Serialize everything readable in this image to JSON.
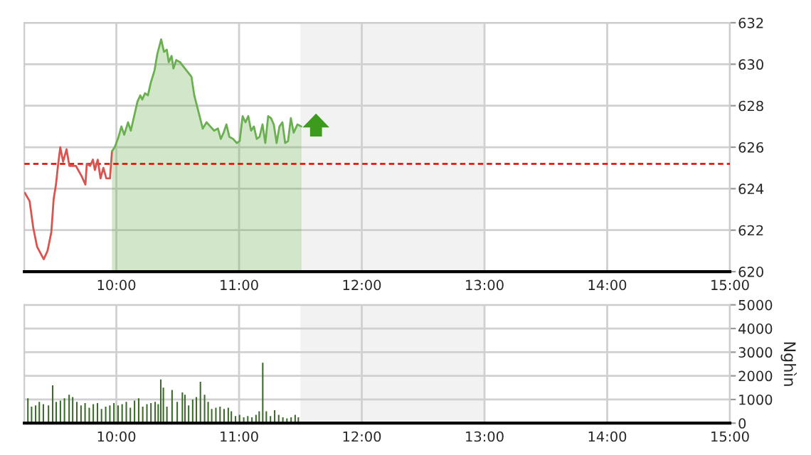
{
  "chart_data": [
    {
      "type": "area",
      "xlim": [
        9.25,
        15
      ],
      "ylim": [
        620,
        632
      ],
      "xticks": [
        {
          "value": 10,
          "label": "10:00"
        },
        {
          "value": 11,
          "label": "11:00"
        },
        {
          "value": 12,
          "label": "12:00"
        },
        {
          "value": 13,
          "label": "13:00"
        },
        {
          "value": 14,
          "label": "14:00"
        },
        {
          "value": 15,
          "label": "15:00"
        }
      ],
      "yticks": [
        620,
        622,
        624,
        626,
        628,
        630,
        632
      ],
      "grid": true,
      "ref_lines": [
        {
          "axis": "y",
          "value": 625.2,
          "color": "#e00000",
          "line_style": "dashed"
        }
      ],
      "bands": [
        {
          "axis": "x",
          "from": 11.5,
          "to": 13,
          "color": "#f2f2f2"
        }
      ],
      "series": [
        {
          "type": "line",
          "color": "#d9534f",
          "x": [
            9.254,
            9.293,
            9.323,
            9.354,
            9.408,
            9.439,
            9.47,
            9.489,
            9.508,
            9.524,
            9.543,
            9.566,
            9.594,
            9.617,
            9.67,
            9.717,
            9.748,
            9.759,
            9.786,
            9.809,
            9.825,
            9.848,
            9.871,
            9.894,
            9.918,
            9.948,
            9.964
          ],
          "values": [
            623.8,
            623.4,
            622.1,
            621.2,
            620.6,
            621.0,
            621.9,
            623.5,
            624.2,
            625.1,
            626.0,
            625.3,
            625.9,
            625.1,
            625.1,
            624.6,
            624.2,
            625.2,
            625.1,
            625.4,
            624.9,
            625.4,
            624.5,
            625.0,
            624.5,
            624.5,
            625.8
          ]
        },
        {
          "type": "area",
          "color": "#6aaf50",
          "x": [
            9.964,
            9.987,
            10.018,
            10.041,
            10.064,
            10.095,
            10.118,
            10.141,
            10.172,
            10.195,
            10.211,
            10.234,
            10.257,
            10.28,
            10.311,
            10.334,
            10.365,
            10.388,
            10.411,
            10.427,
            10.45,
            10.465,
            10.488,
            10.519,
            10.558,
            10.612,
            10.635,
            10.674,
            10.704,
            10.735,
            10.766,
            10.797,
            10.828,
            10.851,
            10.874,
            10.897,
            10.921,
            10.951,
            10.982,
            11.005,
            11.029,
            11.052,
            11.075,
            11.098,
            11.121,
            11.144,
            11.167,
            11.191,
            11.214,
            11.237,
            11.26,
            11.283,
            11.306,
            11.329,
            11.353,
            11.376,
            11.399,
            11.422,
            11.445,
            11.476,
            11.507
          ],
          "values": [
            625.8,
            626.0,
            626.5,
            627.0,
            626.6,
            627.2,
            626.8,
            627.4,
            628.2,
            628.5,
            628.3,
            628.6,
            628.5,
            629.1,
            629.7,
            630.5,
            631.2,
            630.6,
            630.7,
            630.1,
            630.4,
            629.8,
            630.2,
            630.1,
            629.8,
            629.4,
            628.5,
            627.6,
            626.9,
            627.2,
            627.0,
            626.8,
            626.9,
            626.4,
            626.7,
            627.1,
            626.5,
            626.4,
            626.2,
            626.3,
            627.5,
            627.2,
            627.5,
            626.8,
            627.0,
            626.4,
            626.5,
            627.1,
            626.2,
            627.5,
            627.4,
            627.1,
            626.2,
            627.0,
            627.2,
            626.2,
            626.3,
            627.4,
            626.7,
            627.1,
            627.0
          ]
        }
      ]
    },
    {
      "type": "bar",
      "xlim": [
        9.25,
        15
      ],
      "ylim": [
        0,
        5000
      ],
      "ylabel": "Nghìn",
      "xticks": [
        {
          "value": 10,
          "label": "10:00"
        },
        {
          "value": 11,
          "label": "11:00"
        },
        {
          "value": 12,
          "label": "12:00"
        },
        {
          "value": 13,
          "label": "13:00"
        },
        {
          "value": 14,
          "label": "14:00"
        },
        {
          "value": 15,
          "label": "15:00"
        }
      ],
      "yticks": [
        0,
        1000,
        2000,
        3000,
        4000,
        5000
      ],
      "grid": true,
      "bands": [
        {
          "axis": "x",
          "from": 11.5,
          "to": 13,
          "color": "#f2f2f2"
        }
      ],
      "series": [
        {
          "color": "#3d6b2a",
          "x": [
            9.279,
            9.309,
            9.342,
            9.372,
            9.405,
            9.447,
            9.481,
            9.51,
            9.544,
            9.577,
            9.615,
            9.644,
            9.678,
            9.712,
            9.745,
            9.779,
            9.812,
            9.846,
            9.879,
            9.913,
            9.947,
            9.98,
            10.014,
            10.047,
            10.081,
            10.114,
            10.148,
            10.182,
            10.215,
            10.249,
            10.282,
            10.316,
            10.341,
            10.362,
            10.383,
            10.412,
            10.454,
            10.496,
            10.538,
            10.559,
            10.589,
            10.622,
            10.652,
            10.685,
            10.719,
            10.748,
            10.777,
            10.811,
            10.845,
            10.878,
            10.912,
            10.937,
            10.971,
            11.004,
            11.038,
            11.071,
            11.105,
            11.138,
            11.164,
            11.193,
            11.222,
            11.256,
            11.29,
            11.323,
            11.357,
            11.39,
            11.424,
            11.457,
            11.483
          ],
          "values": [
            1050,
            700,
            750,
            900,
            800,
            750,
            1600,
            900,
            950,
            1050,
            1200,
            1100,
            900,
            750,
            850,
            650,
            800,
            850,
            600,
            700,
            750,
            850,
            750,
            800,
            900,
            650,
            950,
            1050,
            700,
            800,
            850,
            900,
            800,
            1850,
            1500,
            700,
            1400,
            900,
            1300,
            1200,
            750,
            1000,
            1100,
            1750,
            1200,
            900,
            600,
            650,
            700,
            600,
            650,
            500,
            300,
            350,
            250,
            300,
            250,
            350,
            500,
            2550,
            500,
            300,
            550,
            350,
            250,
            200,
            250,
            350,
            250
          ]
        }
      ]
    }
  ]
}
